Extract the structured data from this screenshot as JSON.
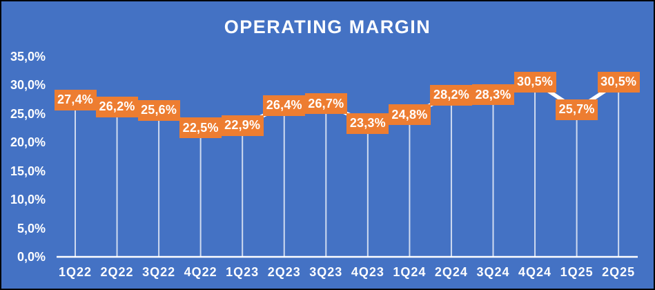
{
  "chart_data": {
    "type": "line",
    "title": "OPERATING MARGIN",
    "categories": [
      "1Q22",
      "2Q22",
      "3Q22",
      "4Q22",
      "1Q23",
      "2Q23",
      "3Q23",
      "4Q23",
      "1Q24",
      "2Q24",
      "3Q24",
      "4Q24",
      "1Q25",
      "2Q25"
    ],
    "values": [
      27.4,
      26.2,
      25.6,
      22.5,
      22.9,
      26.4,
      26.7,
      23.3,
      24.8,
      28.2,
      28.3,
      30.5,
      25.7,
      30.5
    ],
    "labels": [
      "27,4%",
      "26,2%",
      "25,6%",
      "22,5%",
      "22,9%",
      "26,4%",
      "26,7%",
      "23,3%",
      "24,8%",
      "28,2%",
      "28,3%",
      "30,5%",
      "25,7%",
      "30,5%"
    ],
    "y_ticks": [
      "0,0%",
      "5,0%",
      "10,0%",
      "15,0%",
      "20,0%",
      "25,0%",
      "30,0%",
      "35,0%"
    ],
    "y_tick_values": [
      0,
      5,
      10,
      15,
      20,
      25,
      30,
      35
    ],
    "ylim": [
      0,
      35
    ],
    "xlabel": "",
    "ylabel": "",
    "legend": "none",
    "grid": "none",
    "colors": {
      "background": "#4472C4",
      "label_box": "#ED7D31",
      "series_line": "#FFFFFF",
      "drop_line": "rgba(255,255,255,0.75)",
      "axis_line": "#FFFFFF",
      "text": "#FFFFFF"
    }
  }
}
